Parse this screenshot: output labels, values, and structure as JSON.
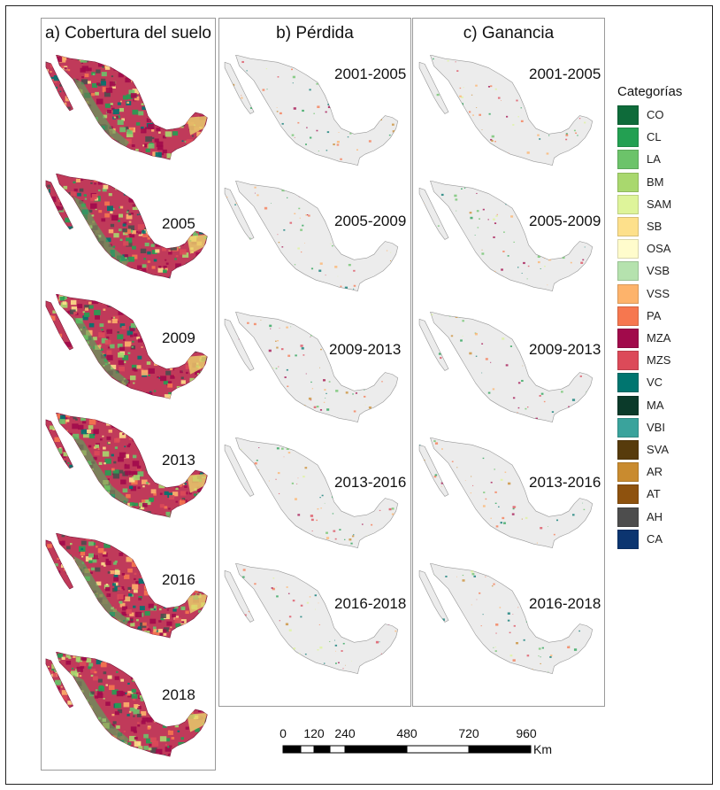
{
  "panels": {
    "a": {
      "title": "a) Cobertura del suelo",
      "years": [
        "",
        "2005",
        "2009",
        "2013",
        "2016",
        "2018"
      ]
    },
    "b": {
      "title": "b) Pérdida",
      "periods": [
        "2001-2005",
        "2005-2009",
        "2009-2013",
        "2013-2016",
        "2016-2018"
      ]
    },
    "c": {
      "title": "c) Ganancia",
      "periods": [
        "2001-2005",
        "2005-2009",
        "2009-2013",
        "2013-2016",
        "2016-2018"
      ]
    }
  },
  "legend": {
    "title": "Categorías",
    "items": [
      {
        "code": "CO",
        "color": "#0e6b3a"
      },
      {
        "code": "CL",
        "color": "#23a052"
      },
      {
        "code": "LA",
        "color": "#6cc36a"
      },
      {
        "code": "BM",
        "color": "#a9d86e"
      },
      {
        "code": "SAM",
        "color": "#def49a"
      },
      {
        "code": "SB",
        "color": "#fde08b"
      },
      {
        "code": "OSA",
        "color": "#fffccc"
      },
      {
        "code": "VSB",
        "color": "#b5e2ae"
      },
      {
        "code": "VSS",
        "color": "#fdb36b"
      },
      {
        "code": "PA",
        "color": "#f6774f"
      },
      {
        "code": "MZA",
        "color": "#a10a4b"
      },
      {
        "code": "MZS",
        "color": "#dc4a59"
      },
      {
        "code": "VC",
        "color": "#00756f"
      },
      {
        "code": "MA",
        "color": "#0b3a2a"
      },
      {
        "code": "VBI",
        "color": "#3aa39c"
      },
      {
        "code": "SVA",
        "color": "#573b0c"
      },
      {
        "code": "AR",
        "color": "#c98b2f"
      },
      {
        "code": "AT",
        "color": "#8e520e"
      },
      {
        "code": "AH",
        "color": "#4d4d4d"
      },
      {
        "code": "CA",
        "color": "#0c3570"
      }
    ]
  },
  "scale_bar": {
    "ticks": [
      "0",
      "120",
      "240",
      "480",
      "720",
      "960"
    ],
    "unit": "Km"
  }
}
